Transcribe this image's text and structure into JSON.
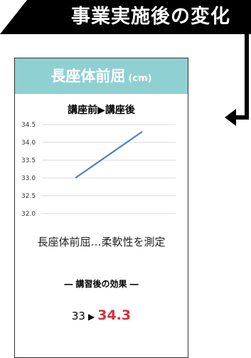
{
  "banner": {
    "title": "事業実施後の変化"
  },
  "card": {
    "title": "長座体前屈",
    "unit": "(cm)",
    "chart_title": "講座前▶講座後",
    "caption": "長座体前屈…柔軟性を測定",
    "effect_heading": "― 講習後の効果 ―",
    "result": {
      "before": "33",
      "arrow": "▶",
      "after": "34.3"
    }
  },
  "colors": {
    "header": "#8fd0d3",
    "line": "#4f81bd",
    "highlight": "#d0313b"
  },
  "chart_data": {
    "type": "line",
    "title": "講座前▶講座後",
    "x": [
      1,
      2
    ],
    "series": [
      {
        "values": [
          33.0,
          34.3
        ]
      }
    ],
    "y_ticks": [
      "34.5",
      "34.0",
      "33.5",
      "33.0",
      "32.5",
      "32.0"
    ],
    "ylim": [
      32.0,
      34.5
    ],
    "grid": true
  }
}
